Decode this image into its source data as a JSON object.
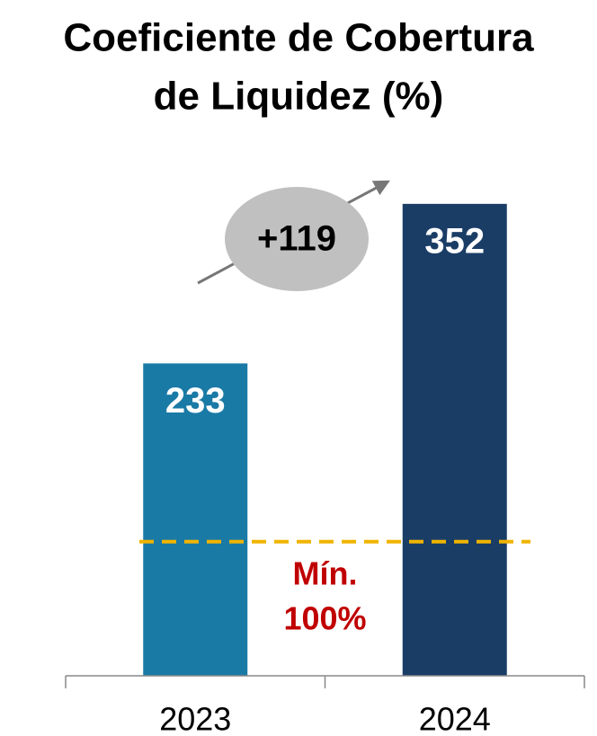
{
  "chart_data": {
    "type": "bar",
    "title": [
      "Coeficiente de Cobertura",
      "de Liquidez (%)"
    ],
    "categories": [
      "2023",
      "2024"
    ],
    "values": [
      233,
      352
    ],
    "colors": [
      "#1a7aa6",
      "#1a3d66"
    ],
    "ylim": [
      0,
      370
    ],
    "change": {
      "value": 119,
      "label": "+119"
    },
    "reference_line": {
      "value": 100,
      "label": "Mín.",
      "value_label": "100%",
      "color": "#f0b400"
    }
  }
}
